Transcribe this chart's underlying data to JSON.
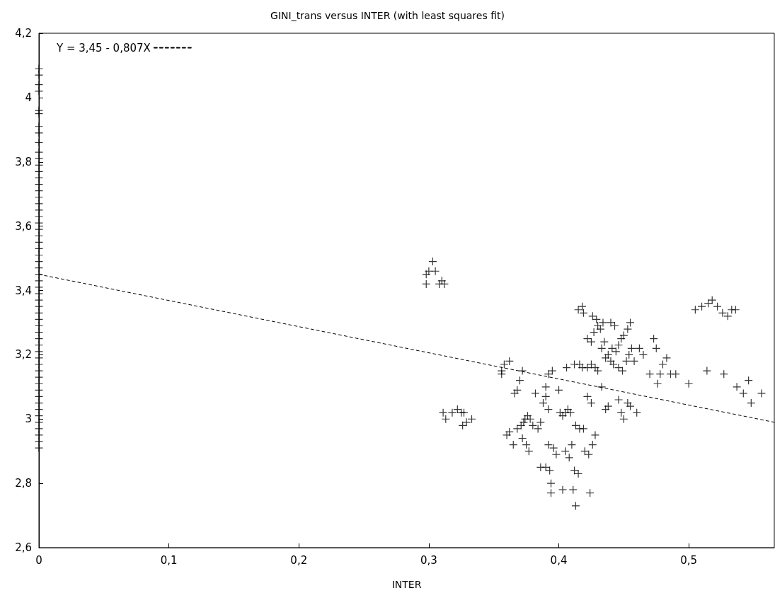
{
  "chart_data": {
    "type": "scatter",
    "title": "GINI_trans versus INTER (with least squares fit)",
    "xlabel": "INTER",
    "xlim": [
      0,
      0.5658
    ],
    "xticks": [
      0,
      {
        "value": 0.1,
        "label": "0,1"
      },
      {
        "value": 0.2,
        "label": "0,2"
      },
      {
        "value": 0.3,
        "label": "0,3"
      },
      {
        "value": 0.4,
        "label": "0,4"
      },
      {
        "value": 0.5,
        "label": "0,5"
      }
    ],
    "ylim": [
      2.6,
      4.2
    ],
    "yticks": [
      {
        "value": 2.6,
        "label": "2,6"
      },
      {
        "value": 2.8,
        "label": "2,8"
      },
      3,
      {
        "value": 3.2,
        "label": "3,2"
      },
      {
        "value": 3.4,
        "label": "3,4"
      },
      {
        "value": 3.6,
        "label": "3,6"
      },
      {
        "value": 3.8,
        "label": "3,8"
      },
      4,
      {
        "value": 4.2,
        "label": "4,2"
      }
    ],
    "grid": false,
    "legend": "top left",
    "series": [
      {
        "color": "#000000",
        "marker": "cross",
        "x": [
          0,
          0,
          0,
          0,
          0,
          0,
          0,
          0,
          0,
          0,
          0,
          0,
          0,
          0,
          0,
          0,
          0,
          0,
          0,
          0,
          0,
          0,
          0,
          0,
          0,
          0,
          0,
          0,
          0,
          0,
          0,
          0,
          0,
          0,
          0,
          0,
          0,
          0,
          0,
          0,
          0,
          0,
          0,
          0,
          0,
          0,
          0,
          0,
          0,
          0,
          0,
          0,
          0,
          0,
          0,
          0,
          0.298,
          0.3,
          0.303,
          0.305,
          0.298,
          0.308,
          0.31,
          0.312,
          0.311,
          0.313,
          0.318,
          0.322,
          0.325,
          0.327,
          0.326,
          0.329,
          0.333,
          0.356,
          0.358,
          0.362,
          0.356,
          0.36,
          0.362,
          0.365,
          0.366,
          0.368,
          0.37,
          0.372,
          0.368,
          0.371,
          0.373,
          0.374,
          0.376,
          0.378,
          0.372,
          0.375,
          0.377,
          0.38,
          0.382,
          0.384,
          0.386,
          0.388,
          0.39,
          0.392,
          0.39,
          0.392,
          0.395,
          0.386,
          0.39,
          0.393,
          0.394,
          0.394,
          0.392,
          0.396,
          0.398,
          0.4,
          0.401,
          0.403,
          0.405,
          0.407,
          0.409,
          0.405,
          0.408,
          0.41,
          0.403,
          0.411,
          0.413,
          0.412,
          0.415,
          0.413,
          0.416,
          0.419,
          0.406,
          0.412,
          0.416,
          0.418,
          0.415,
          0.418,
          0.419,
          0.422,
          0.425,
          0.42,
          0.423,
          0.426,
          0.428,
          0.424,
          0.422,
          0.425,
          0.428,
          0.43,
          0.422,
          0.425,
          0.427,
          0.426,
          0.429,
          0.43,
          0.432,
          0.434,
          0.433,
          0.435,
          0.436,
          0.438,
          0.44,
          0.442,
          0.44,
          0.443,
          0.441,
          0.444,
          0.446,
          0.448,
          0.45,
          0.446,
          0.449,
          0.452,
          0.454,
          0.456,
          0.453,
          0.455,
          0.436,
          0.438,
          0.433,
          0.446,
          0.448,
          0.45,
          0.453,
          0.455,
          0.46,
          0.458,
          0.462,
          0.465,
          0.47,
          0.473,
          0.475,
          0.476,
          0.478,
          0.48,
          0.483,
          0.486,
          0.49,
          0.5,
          0.505,
          0.51,
          0.515,
          0.518,
          0.522,
          0.526,
          0.53,
          0.533,
          0.536,
          0.514,
          0.527,
          0.537,
          0.542,
          0.546,
          0.548,
          0.556
        ],
        "values": [
          2.91,
          2.93,
          2.95,
          2.97,
          2.99,
          3.01,
          3.03,
          3.05,
          3.07,
          3.09,
          3.11,
          3.13,
          3.15,
          3.17,
          3.19,
          3.21,
          3.23,
          3.25,
          3.27,
          3.29,
          3.31,
          3.33,
          3.35,
          3.37,
          3.39,
          3.41,
          3.43,
          3.45,
          3.47,
          3.49,
          3.51,
          3.53,
          3.55,
          3.57,
          3.59,
          3.61,
          3.63,
          3.65,
          3.67,
          3.69,
          3.71,
          3.73,
          3.75,
          3.77,
          3.79,
          3.81,
          3.83,
          3.86,
          3.89,
          3.91,
          3.95,
          3.96,
          4.02,
          4.04,
          4.07,
          4.09,
          3.45,
          3.46,
          3.49,
          3.46,
          3.42,
          3.42,
          3.43,
          3.42,
          3.02,
          3.0,
          3.02,
          3.03,
          3.02,
          3.02,
          2.98,
          2.99,
          3.0,
          3.15,
          3.17,
          3.18,
          3.14,
          2.95,
          2.96,
          2.92,
          3.08,
          3.09,
          3.12,
          3.15,
          2.97,
          2.98,
          2.99,
          3.0,
          3.01,
          3.0,
          2.94,
          2.92,
          2.9,
          2.98,
          3.08,
          2.97,
          2.99,
          3.05,
          3.07,
          3.03,
          3.1,
          3.14,
          3.15,
          2.85,
          2.85,
          2.84,
          2.8,
          2.77,
          2.92,
          2.91,
          2.89,
          3.09,
          3.02,
          3.01,
          3.02,
          3.03,
          3.02,
          2.9,
          2.88,
          2.92,
          2.78,
          2.78,
          2.73,
          2.84,
          2.83,
          2.98,
          2.97,
          2.97,
          3.16,
          3.17,
          3.17,
          3.16,
          3.34,
          3.35,
          3.33,
          3.07,
          3.05,
          2.9,
          2.89,
          2.92,
          2.95,
          2.77,
          3.16,
          3.17,
          3.16,
          3.15,
          3.25,
          3.24,
          3.27,
          3.32,
          3.31,
          3.29,
          3.28,
          3.3,
          3.22,
          3.24,
          3.19,
          3.2,
          3.18,
          3.17,
          3.3,
          3.29,
          3.22,
          3.21,
          3.23,
          3.25,
          3.26,
          3.16,
          3.15,
          3.18,
          3.2,
          3.22,
          3.28,
          3.3,
          3.03,
          3.04,
          3.1,
          3.06,
          3.02,
          3.0,
          3.05,
          3.04,
          3.02,
          3.18,
          3.22,
          3.2,
          3.14,
          3.25,
          3.22,
          3.11,
          3.14,
          3.17,
          3.19,
          3.14,
          3.14,
          3.11,
          3.34,
          3.35,
          3.36,
          3.37,
          3.35,
          3.33,
          3.32,
          3.34,
          3.34,
          3.15,
          3.14,
          3.1,
          3.08,
          3.12,
          3.05,
          3.08
        ]
      },
      {
        "type": "line",
        "name": "Y = 3,45 - 0,807X",
        "color": "#000000",
        "line_style": "dashed",
        "x": [
          0,
          0.5658
        ],
        "values": [
          3.45,
          2.99
        ]
      }
    ]
  }
}
